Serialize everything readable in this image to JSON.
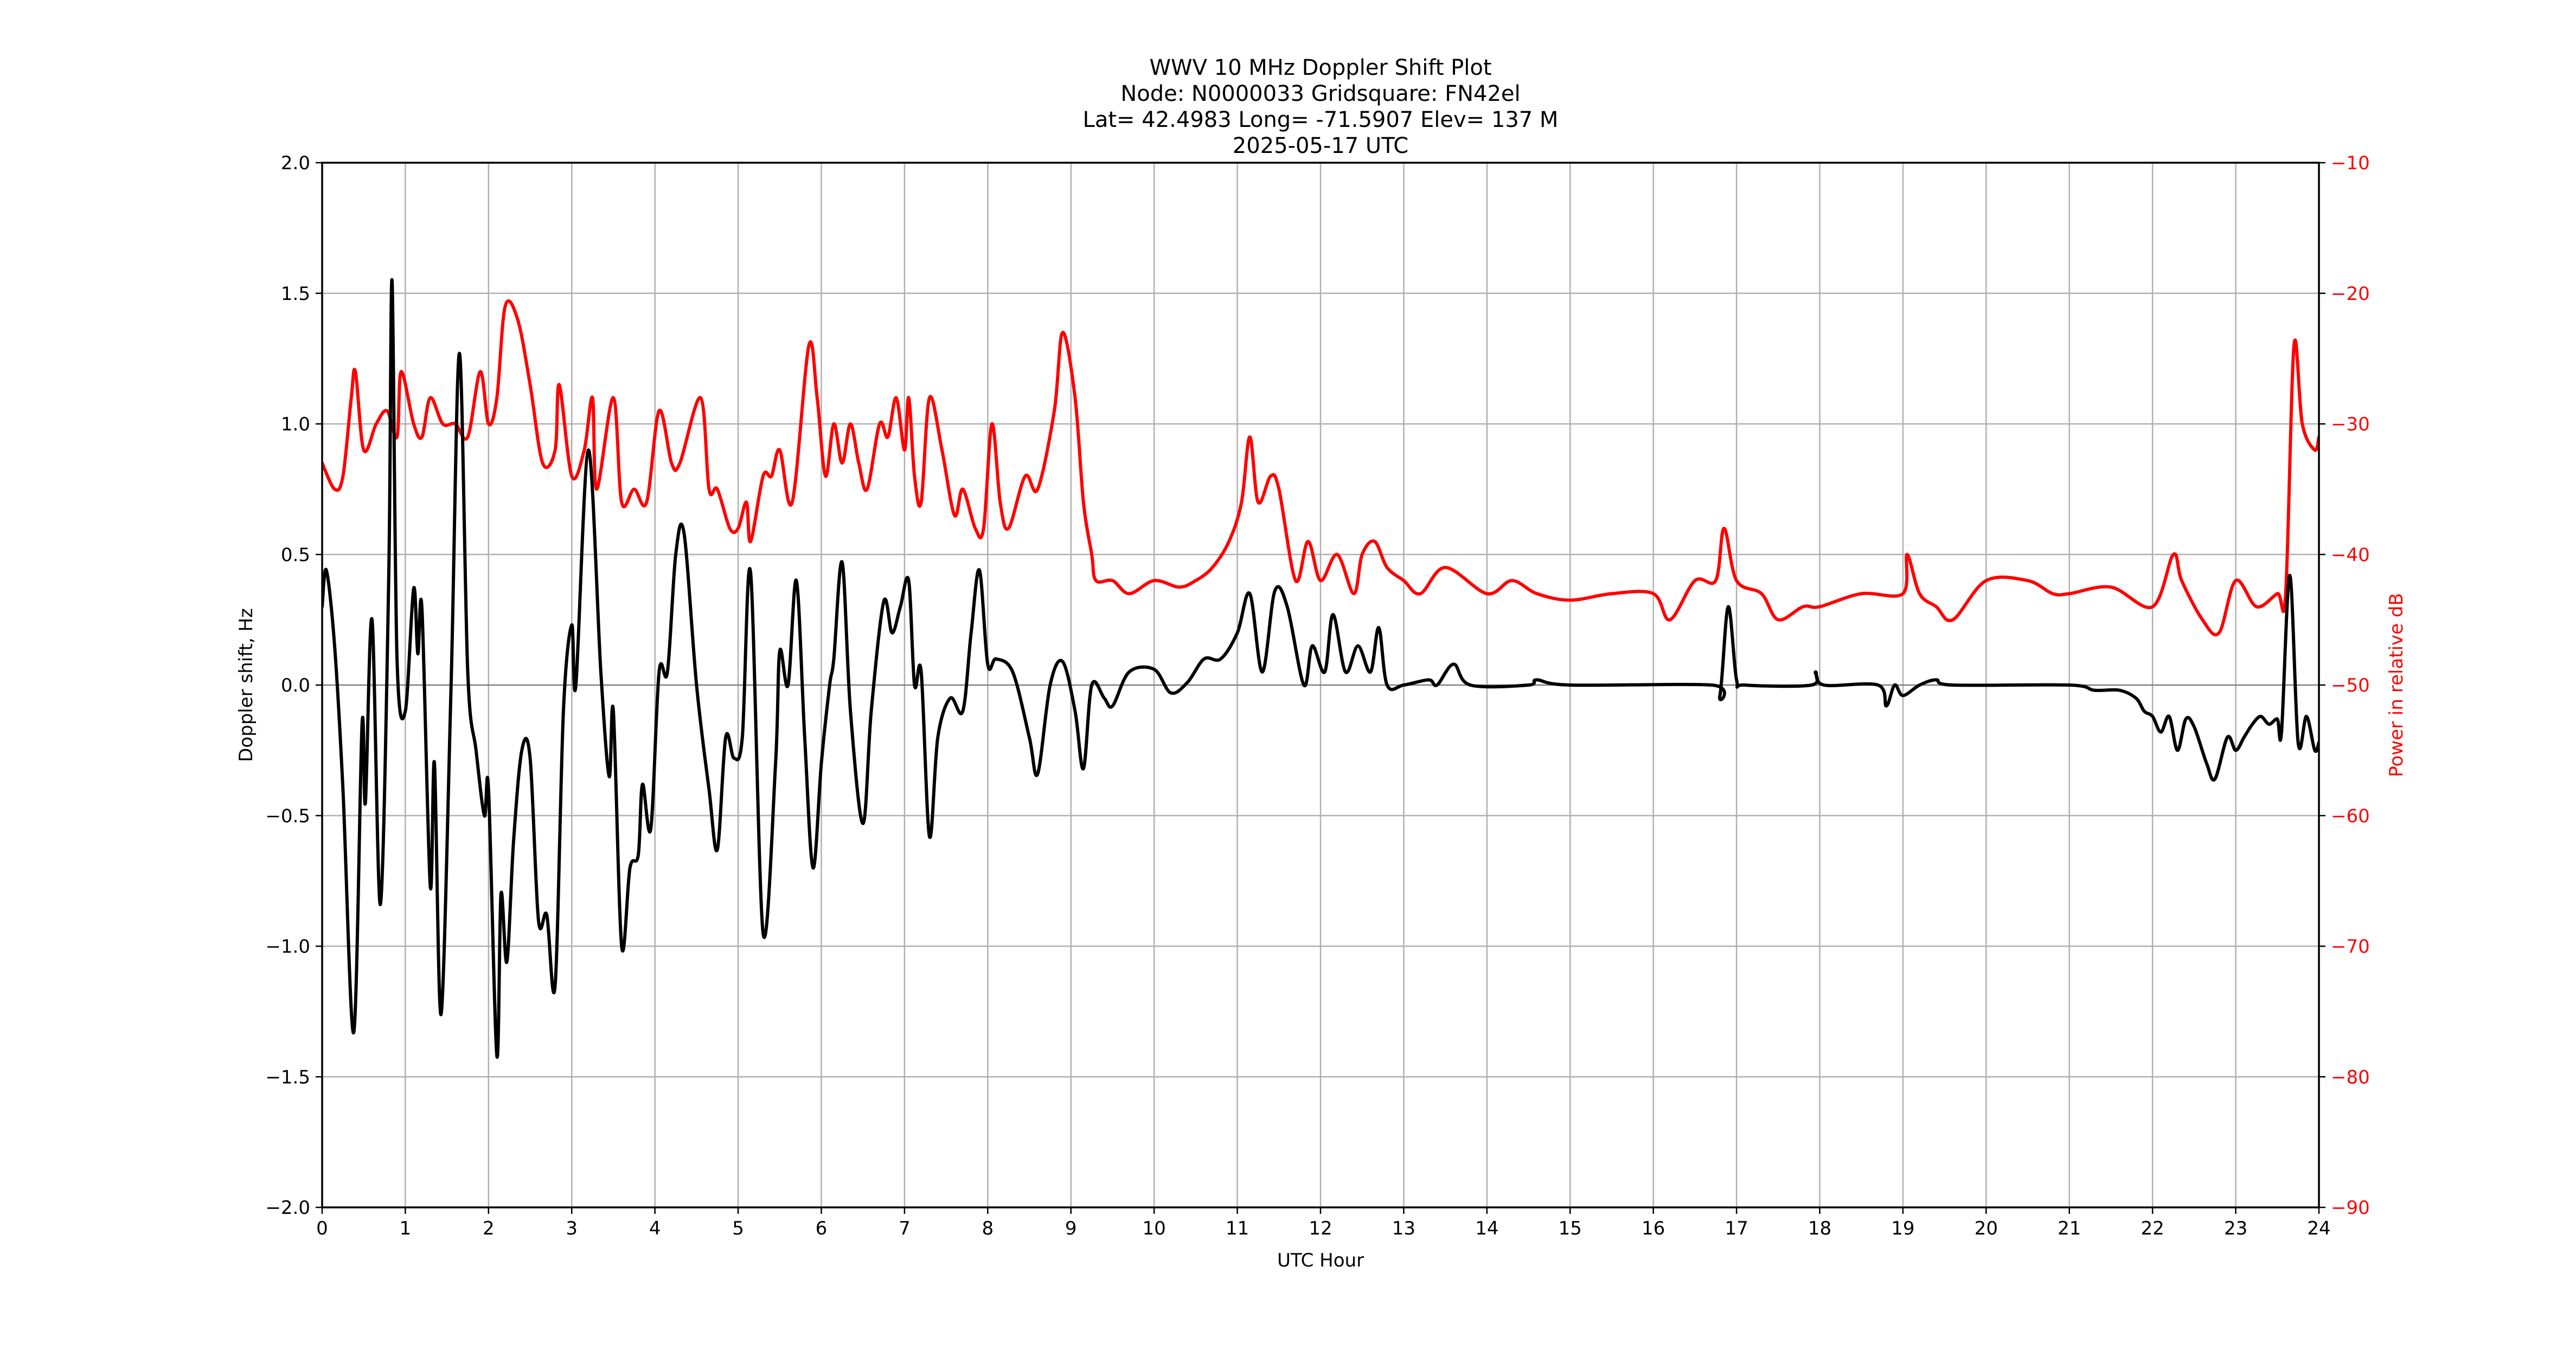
{
  "chart_data": {
    "type": "line",
    "title": "WWV 10 MHz Doppler Shift Plot",
    "subtitle_lines": [
      "Node:  N0000033     Gridsquare:  FN42el",
      "Lat= 42.4983    Long= -71.5907    Elev= 137 M",
      "2025-05-17  UTC"
    ],
    "xlabel": "UTC Hour",
    "ylabel": "Doppler shift, Hz",
    "ylabel_right": "Power in relative dB",
    "xlim": [
      0,
      24
    ],
    "ylim": [
      -2.0,
      2.0
    ],
    "ylim_right": [
      -90,
      -10
    ],
    "grid": true,
    "x_ticks": [
      "0",
      "1",
      "2",
      "3",
      "4",
      "5",
      "6",
      "7",
      "8",
      "9",
      "10",
      "11",
      "12",
      "13",
      "14",
      "15",
      "16",
      "17",
      "18",
      "19",
      "20",
      "21",
      "22",
      "23",
      "24"
    ],
    "y_ticks": [
      "2.0",
      "1.5",
      "1.0",
      "0.5",
      "0.0",
      "−0.5",
      "−1.0",
      "−1.5",
      "−2.0"
    ],
    "y_ticks_right": [
      "−10",
      "−20",
      "−30",
      "−40",
      "−50",
      "−60",
      "−70",
      "−80",
      "−90"
    ],
    "series": [
      {
        "name": "Doppler shift",
        "axis": "left",
        "color": "#000000",
        "x": [
          0.0,
          0.05,
          0.15,
          0.25,
          0.38,
          0.48,
          0.52,
          0.6,
          0.7,
          0.8,
          0.84,
          0.9,
          1.0,
          1.1,
          1.15,
          1.2,
          1.3,
          1.35,
          1.43,
          1.55,
          1.65,
          1.75,
          1.85,
          1.95,
          2.0,
          2.1,
          2.15,
          2.22,
          2.3,
          2.4,
          2.5,
          2.6,
          2.7,
          2.8,
          2.9,
          3.0,
          3.05,
          3.2,
          3.35,
          3.45,
          3.5,
          3.6,
          3.7,
          3.8,
          3.85,
          3.95,
          4.05,
          4.15,
          4.25,
          4.35,
          4.5,
          4.65,
          4.75,
          4.85,
          4.95,
          5.05,
          5.15,
          5.3,
          5.45,
          5.5,
          5.6,
          5.7,
          5.8,
          5.9,
          6.0,
          6.1,
          6.15,
          6.25,
          6.35,
          6.5,
          6.6,
          6.75,
          6.85,
          6.95,
          7.05,
          7.12,
          7.2,
          7.3,
          7.4,
          7.55,
          7.7,
          7.8,
          7.9,
          8.0,
          8.1,
          8.3,
          8.5,
          8.6,
          8.75,
          8.9,
          9.05,
          9.15,
          9.25,
          9.4,
          9.5,
          9.7,
          10.0,
          10.2,
          10.4,
          10.6,
          10.8,
          11.0,
          11.15,
          11.3,
          11.45,
          11.6,
          11.8,
          11.9,
          12.05,
          12.15,
          12.3,
          12.45,
          12.6,
          12.7,
          12.8,
          13.0,
          13.3,
          13.4,
          13.6,
          13.8,
          14.5,
          14.6,
          15.0,
          16.7,
          16.8,
          16.9,
          17.0,
          17.1,
          17.9,
          17.95,
          18.05,
          18.7,
          18.8,
          18.9,
          19.0,
          19.2,
          19.4,
          19.6,
          21.0,
          21.3,
          21.6,
          21.8,
          21.9,
          22.0,
          22.1,
          22.2,
          22.3,
          22.4,
          22.5,
          22.65,
          22.75,
          22.9,
          23.0,
          23.1,
          23.2,
          23.3,
          23.4,
          23.5,
          23.55,
          23.65,
          23.75,
          23.85,
          23.95,
          24.0
        ],
        "values": [
          0.3,
          0.44,
          0.15,
          -0.4,
          -1.33,
          -0.15,
          -0.45,
          0.25,
          -0.84,
          0.4,
          1.55,
          0.1,
          -0.1,
          0.37,
          0.12,
          0.29,
          -0.77,
          -0.3,
          -1.26,
          0.0,
          1.27,
          0.05,
          -0.25,
          -0.5,
          -0.4,
          -1.42,
          -0.8,
          -1.06,
          -0.6,
          -0.25,
          -0.28,
          -0.9,
          -0.88,
          -1.15,
          -0.1,
          0.23,
          0.0,
          0.9,
          0.05,
          -0.35,
          -0.1,
          -1.0,
          -0.7,
          -0.65,
          -0.38,
          -0.55,
          0.05,
          0.05,
          0.5,
          0.58,
          0.0,
          -0.4,
          -0.63,
          -0.2,
          -0.28,
          -0.2,
          0.43,
          -0.95,
          -0.3,
          0.13,
          0.0,
          0.4,
          -0.2,
          -0.7,
          -0.3,
          0.0,
          0.1,
          0.47,
          -0.1,
          -0.53,
          -0.1,
          0.32,
          0.2,
          0.3,
          0.4,
          0.0,
          0.05,
          -0.58,
          -0.2,
          -0.05,
          -0.1,
          0.2,
          0.44,
          0.08,
          0.1,
          0.05,
          -0.2,
          -0.34,
          0.0,
          0.09,
          -0.1,
          -0.32,
          0.0,
          -0.05,
          -0.08,
          0.05,
          0.06,
          -0.03,
          0.01,
          0.1,
          0.1,
          0.2,
          0.35,
          0.05,
          0.36,
          0.3,
          0.0,
          0.15,
          0.05,
          0.27,
          0.05,
          0.15,
          0.05,
          0.22,
          0.0,
          0.0,
          0.02,
          0.0,
          0.08,
          0.0,
          0.0,
          0.02,
          0.0,
          0.0,
          -0.04,
          0.3,
          0.02,
          0.0,
          0.0,
          0.05,
          0.0,
          0.0,
          -0.08,
          0.0,
          -0.04,
          0.0,
          0.02,
          0.0,
          0.0,
          -0.02,
          -0.02,
          -0.05,
          -0.1,
          -0.12,
          -0.18,
          -0.12,
          -0.25,
          -0.13,
          -0.16,
          -0.3,
          -0.36,
          -0.2,
          -0.25,
          -0.2,
          -0.15,
          -0.12,
          -0.15,
          -0.13,
          -0.18,
          0.42,
          -0.22,
          -0.12,
          -0.25,
          -0.22
        ]
      },
      {
        "name": "Power",
        "axis": "right",
        "color": "#ff0000",
        "x": [
          0.0,
          0.15,
          0.25,
          0.35,
          0.4,
          0.5,
          0.65,
          0.78,
          0.9,
          0.95,
          1.1,
          1.2,
          1.3,
          1.45,
          1.6,
          1.75,
          1.9,
          2.0,
          2.1,
          2.2,
          2.35,
          2.5,
          2.65,
          2.8,
          2.85,
          3.0,
          3.15,
          3.25,
          3.3,
          3.5,
          3.6,
          3.75,
          3.9,
          4.05,
          4.2,
          4.3,
          4.55,
          4.65,
          4.75,
          4.9,
          5.0,
          5.1,
          5.15,
          5.3,
          5.4,
          5.5,
          5.65,
          5.85,
          5.95,
          6.05,
          6.15,
          6.25,
          6.35,
          6.45,
          6.55,
          6.7,
          6.8,
          6.9,
          7.0,
          7.05,
          7.12,
          7.2,
          7.3,
          7.45,
          7.6,
          7.7,
          7.85,
          7.95,
          8.05,
          8.15,
          8.25,
          8.45,
          8.6,
          8.8,
          8.9,
          9.05,
          9.15,
          9.25,
          9.3,
          9.5,
          9.7,
          10.0,
          10.3,
          10.5,
          10.7,
          10.9,
          11.05,
          11.15,
          11.25,
          11.4,
          11.5,
          11.7,
          11.85,
          12.0,
          12.2,
          12.4,
          12.5,
          12.65,
          12.8,
          13.0,
          13.2,
          13.5,
          14.0,
          14.3,
          14.6,
          15.0,
          15.5,
          16.0,
          16.2,
          16.5,
          16.75,
          16.85,
          17.0,
          17.3,
          17.5,
          17.8,
          18.0,
          18.5,
          19.0,
          19.05,
          19.2,
          19.4,
          19.6,
          20.0,
          20.5,
          20.8,
          21.0,
          21.5,
          22.0,
          22.25,
          22.35,
          22.6,
          22.8,
          23.0,
          23.25,
          23.5,
          23.6,
          23.7,
          23.8,
          23.95,
          24.0
        ],
        "values": [
          -33,
          -35,
          -34,
          -28,
          -26,
          -32,
          -30,
          -29,
          -31,
          -26,
          -30,
          -31,
          -28,
          -30,
          -30,
          -31,
          -26,
          -30,
          -28,
          -21,
          -22,
          -27,
          -33,
          -32,
          -27,
          -34,
          -32,
          -28,
          -35,
          -28,
          -36,
          -35,
          -36,
          -29,
          -33,
          -33,
          -28,
          -35,
          -35,
          -38,
          -38,
          -36,
          -39,
          -34,
          -34,
          -32,
          -36,
          -24,
          -28,
          -34,
          -30,
          -33,
          -30,
          -33,
          -35,
          -30,
          -31,
          -28,
          -32,
          -28,
          -34,
          -36,
          -28,
          -32,
          -37,
          -35,
          -38,
          -38,
          -30,
          -36,
          -38,
          -34,
          -35,
          -29,
          -23,
          -28,
          -36,
          -40,
          -42,
          -42,
          -43,
          -42,
          -42.5,
          -42,
          -41,
          -39,
          -36,
          -31,
          -36,
          -34,
          -35,
          -42,
          -39,
          -42,
          -40,
          -43,
          -40,
          -39,
          -41,
          -42,
          -43,
          -41,
          -43,
          -42,
          -43,
          -43.5,
          -43,
          -43,
          -45,
          -42,
          -42,
          -38,
          -42,
          -43,
          -45,
          -44,
          -44,
          -43,
          -43,
          -40,
          -43,
          -44,
          -45,
          -42,
          -42,
          -43,
          -43,
          -42.5,
          -44,
          -40,
          -42,
          -45,
          -46,
          -42,
          -44,
          -43,
          -43,
          -24,
          -30,
          -32,
          -31
        ]
      }
    ]
  }
}
